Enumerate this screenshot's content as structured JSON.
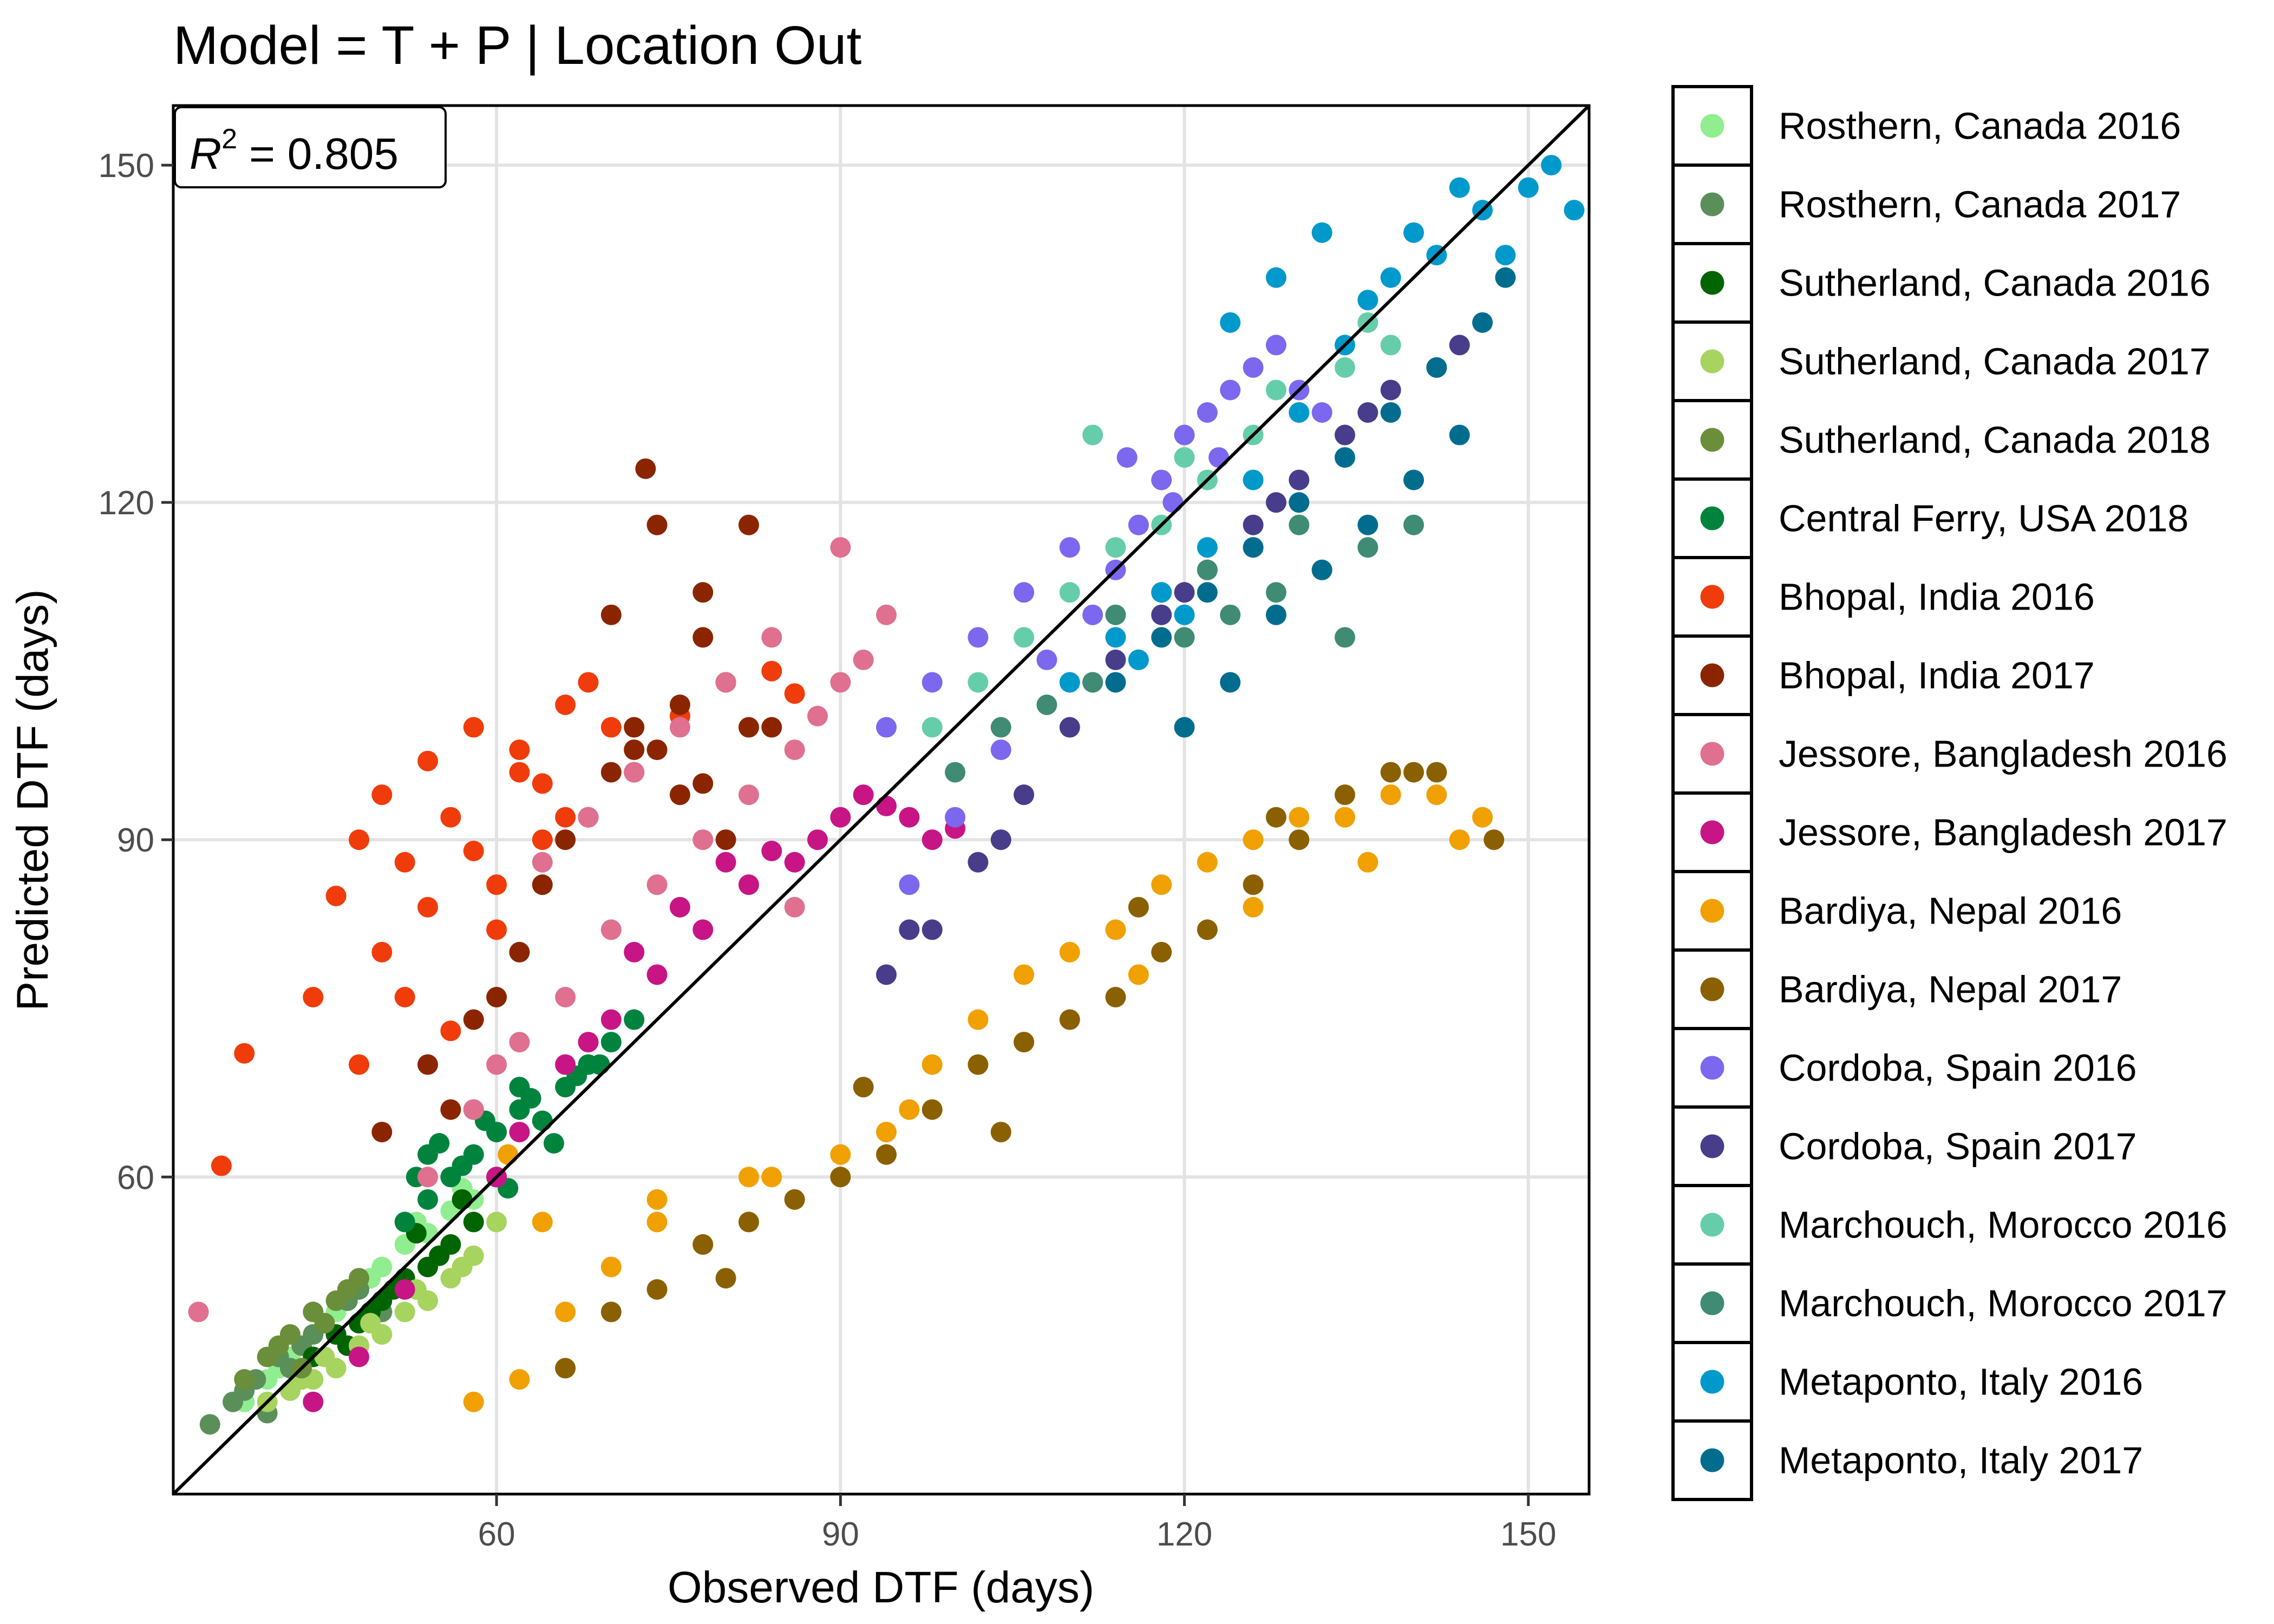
{
  "chart_data": {
    "type": "scatter",
    "title": "Model = T + P | Location Out",
    "xlabel": "Observed DTF (days)",
    "ylabel": "Predicted DTF (days)",
    "xlim": [
      31.8,
      155.3
    ],
    "ylim": [
      31.8,
      155.3
    ],
    "x_ticks": [
      60,
      90,
      120,
      150
    ],
    "y_ticks": [
      60,
      90,
      120,
      150
    ],
    "grid": true,
    "reference_line": "y = x",
    "annotation": {
      "r_symbol": "R",
      "r_exp": "2",
      "r_value": "= 0.805"
    },
    "legend_position": "right",
    "series": [
      {
        "name": "Rosthern, Canada 2016",
        "color": "#90EE90",
        "x": [
          38,
          40,
          42,
          44,
          46,
          48,
          50,
          52,
          54,
          56,
          58,
          41,
          45,
          49,
          53,
          57
        ],
        "y": [
          40,
          42,
          44,
          46,
          48,
          50,
          52,
          54,
          55,
          57,
          58,
          43,
          47,
          51,
          56,
          59
        ]
      },
      {
        "name": "Rosthern, Canada 2017",
        "color": "#5A8F5A",
        "x": [
          35,
          37,
          39,
          41,
          43,
          45,
          47,
          38,
          42,
          46,
          50,
          40,
          44,
          48
        ],
        "y": [
          38,
          40,
          42,
          44,
          45,
          47,
          49,
          41,
          43,
          46,
          48,
          39,
          46,
          50
        ]
      },
      {
        "name": "Sutherland, Canada 2016",
        "color": "#006400",
        "x": [
          44,
          46,
          48,
          50,
          52,
          54,
          56,
          58,
          47,
          51,
          55,
          49,
          53,
          57,
          60
        ],
        "y": [
          44,
          46,
          47,
          49,
          51,
          52,
          54,
          56,
          45,
          50,
          53,
          48,
          55,
          58,
          60
        ]
      },
      {
        "name": "Sutherland, Canada 2017",
        "color": "#A6D45F",
        "x": [
          40,
          42,
          44,
          46,
          48,
          50,
          52,
          54,
          56,
          58,
          45,
          49,
          53,
          57,
          60,
          43
        ],
        "y": [
          40,
          41,
          42,
          43,
          45,
          46,
          48,
          49,
          51,
          53,
          44,
          47,
          50,
          52,
          56,
          42
        ]
      },
      {
        "name": "Sutherland, Canada 2018",
        "color": "#6B8E3A",
        "x": [
          38,
          40,
          42,
          44,
          46,
          48,
          41,
          45,
          47,
          43
        ],
        "y": [
          42,
          44,
          46,
          48,
          49,
          51,
          45,
          47,
          50,
          43
        ]
      },
      {
        "name": "Central Ferry, USA 2018",
        "color": "#00843D",
        "x": [
          52,
          54,
          56,
          58,
          60,
          62,
          64,
          66,
          68,
          70,
          55,
          59,
          63,
          67,
          53,
          57,
          61,
          65,
          69,
          72,
          54,
          58,
          62
        ],
        "y": [
          56,
          58,
          60,
          62,
          64,
          66,
          65,
          68,
          70,
          72,
          63,
          65,
          67,
          69,
          60,
          61,
          59,
          63,
          70,
          74,
          62,
          66,
          68
        ]
      },
      {
        "name": "Bhopal, India 2016",
        "color": "#F03C0A",
        "x": [
          36,
          38,
          44,
          46,
          48,
          50,
          52,
          54,
          56,
          58,
          60,
          62,
          64,
          66,
          68,
          50,
          54,
          58,
          62,
          66,
          70,
          52,
          56,
          60,
          64,
          48,
          72,
          76,
          80,
          84,
          86
        ],
        "y": [
          61,
          71,
          76,
          85,
          90,
          94,
          88,
          97,
          92,
          100,
          86,
          98,
          95,
          102,
          104,
          80,
          84,
          89,
          96,
          92,
          100,
          76,
          73,
          82,
          90,
          70,
          96,
          101,
          104,
          105,
          103
        ]
      },
      {
        "name": "Bhopal, India 2017",
        "color": "#8B2500",
        "x": [
          50,
          54,
          58,
          62,
          66,
          70,
          72,
          74,
          76,
          78,
          80,
          82,
          70,
          74,
          78,
          56,
          60,
          64,
          68,
          72,
          76,
          80,
          84,
          73,
          78,
          82
        ],
        "y": [
          64,
          70,
          74,
          80,
          90,
          96,
          100,
          98,
          102,
          95,
          104,
          100,
          110,
          118,
          108,
          66,
          76,
          86,
          92,
          98,
          94,
          90,
          100,
          123,
          112,
          118
        ]
      },
      {
        "name": "Jessore, Bangladesh 2016",
        "color": "#E0708F",
        "x": [
          34,
          54,
          58,
          62,
          66,
          70,
          74,
          78,
          82,
          86,
          88,
          90,
          92,
          94,
          84,
          80,
          76,
          72,
          68,
          64,
          60,
          90,
          86
        ],
        "y": [
          48,
          60,
          66,
          72,
          76,
          82,
          86,
          90,
          94,
          98,
          101,
          104,
          106,
          110,
          108,
          104,
          100,
          96,
          92,
          88,
          70,
          116,
          84
        ]
      },
      {
        "name": "Jessore, Bangladesh 2017",
        "color": "#C71585",
        "x": [
          44,
          48,
          52,
          60,
          66,
          70,
          74,
          78,
          82,
          86,
          88,
          90,
          92,
          94,
          96,
          98,
          100,
          76,
          80,
          84,
          72,
          68,
          62
        ],
        "y": [
          40,
          44,
          50,
          60,
          70,
          74,
          78,
          82,
          86,
          88,
          90,
          92,
          94,
          93,
          92,
          90,
          91,
          84,
          88,
          89,
          80,
          72,
          64
        ]
      },
      {
        "name": "Bardiya, Nepal 2016",
        "color": "#F0A000",
        "x": [
          58,
          62,
          66,
          70,
          74,
          78,
          82,
          86,
          90,
          94,
          98,
          102,
          106,
          110,
          114,
          118,
          122,
          126,
          130,
          134,
          138,
          142,
          146,
          64,
          74,
          84,
          96,
          106,
          116,
          126,
          136,
          144,
          61
        ],
        "y": [
          40,
          42,
          48,
          52,
          56,
          54,
          60,
          58,
          62,
          64,
          70,
          74,
          78,
          80,
          82,
          86,
          88,
          90,
          92,
          92,
          94,
          94,
          92,
          56,
          58,
          60,
          66,
          72,
          78,
          84,
          88,
          90,
          62
        ]
      },
      {
        "name": "Bardiya, Nepal 2017",
        "color": "#8B6000",
        "x": [
          66,
          70,
          74,
          78,
          82,
          86,
          90,
          94,
          98,
          102,
          106,
          110,
          114,
          118,
          122,
          126,
          130,
          134,
          138,
          142,
          147,
          80,
          92,
          104,
          116,
          128,
          140
        ],
        "y": [
          43,
          48,
          50,
          54,
          56,
          58,
          60,
          62,
          66,
          70,
          72,
          74,
          76,
          80,
          82,
          86,
          90,
          94,
          96,
          96,
          90,
          51,
          68,
          64,
          84,
          92,
          96
        ]
      },
      {
        "name": "Cordoba, Spain 2016",
        "color": "#7B68EE",
        "x": [
          96,
          100,
          104,
          108,
          112,
          114,
          116,
          118,
          120,
          122,
          124,
          126,
          128,
          130,
          132,
          110,
          106,
          102,
          98,
          94,
          115,
          119,
          123
        ],
        "y": [
          86,
          92,
          98,
          106,
          110,
          114,
          118,
          122,
          126,
          128,
          130,
          132,
          134,
          130,
          128,
          116,
          112,
          108,
          104,
          100,
          124,
          120,
          124
        ]
      },
      {
        "name": "Cordoba, Spain 2017",
        "color": "#483D8B",
        "x": [
          94,
          98,
          102,
          106,
          110,
          114,
          118,
          122,
          126,
          130,
          134,
          138,
          142,
          96,
          104,
          112,
          120,
          128,
          136,
          144
        ],
        "y": [
          78,
          82,
          88,
          94,
          100,
          106,
          110,
          114,
          118,
          122,
          126,
          130,
          132,
          82,
          90,
          104,
          112,
          120,
          128,
          134
        ]
      },
      {
        "name": "Marchouch, Morocco 2016",
        "color": "#66CDAA",
        "x": [
          98,
          102,
          106,
          110,
          114,
          118,
          122,
          126,
          130,
          134,
          138,
          112,
          120,
          128,
          136
        ],
        "y": [
          100,
          104,
          108,
          112,
          116,
          118,
          122,
          126,
          128,
          132,
          134,
          126,
          124,
          130,
          136
        ]
      },
      {
        "name": "Marchouch, Morocco 2017",
        "color": "#3F8B73",
        "x": [
          100,
          104,
          108,
          112,
          116,
          120,
          124,
          128,
          132,
          136,
          140,
          114,
          118,
          122,
          126,
          130,
          134
        ],
        "y": [
          96,
          100,
          102,
          104,
          106,
          108,
          110,
          112,
          114,
          116,
          118,
          110,
          112,
          114,
          116,
          118,
          108
        ]
      },
      {
        "name": "Metaponto, Italy 2016",
        "color": "#0099CC",
        "x": [
          110,
          114,
          118,
          122,
          126,
          130,
          134,
          138,
          142,
          146,
          150,
          152,
          154,
          124,
          128,
          132,
          136,
          140,
          144,
          148,
          116,
          120
        ],
        "y": [
          104,
          108,
          112,
          116,
          122,
          128,
          134,
          140,
          142,
          146,
          148,
          150,
          146,
          136,
          140,
          144,
          138,
          144,
          148,
          142,
          106,
          110
        ]
      },
      {
        "name": "Metaponto, Italy 2017",
        "color": "#006D8F",
        "x": [
          114,
          118,
          122,
          126,
          130,
          134,
          138,
          142,
          146,
          148,
          128,
          132,
          136,
          140,
          144,
          120,
          124
        ],
        "y": [
          104,
          108,
          112,
          116,
          120,
          124,
          128,
          132,
          136,
          140,
          110,
          114,
          118,
          122,
          126,
          100,
          104
        ]
      }
    ]
  }
}
